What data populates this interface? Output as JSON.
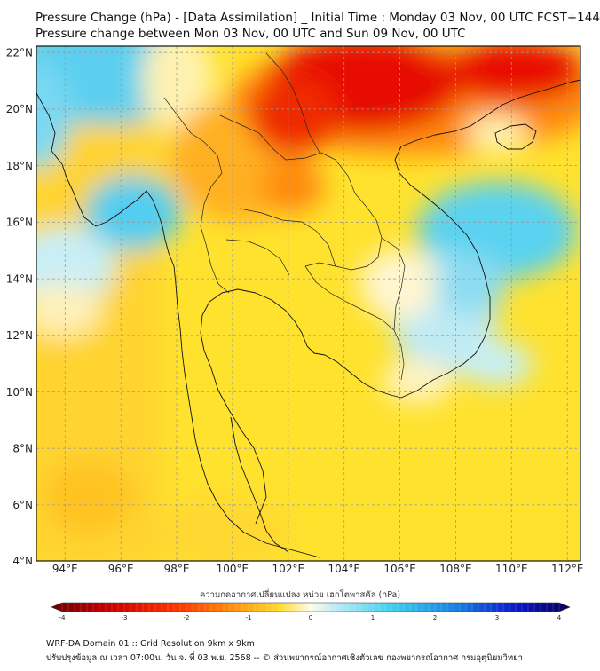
{
  "header": {
    "title_line1": "Pressure Change (hPa) - [Data Assimilation] _ Initial Time : Monday 03 Nov, 00 UTC FCST+144",
    "title_line2": "Pressure change between Mon 03 Nov, 00 UTC and Sun 09 Nov, 00 UTC"
  },
  "map": {
    "lat_ticks": [
      "22°N",
      "20°N",
      "18°N",
      "16°N",
      "14°N",
      "12°N",
      "10°N",
      "8°N",
      "6°N",
      "4°N"
    ],
    "lon_ticks": [
      "94°E",
      "96°E",
      "98°E",
      "100°E",
      "102°E",
      "104°E",
      "106°E",
      "108°E",
      "110°E",
      "112°E"
    ],
    "lat_range": [
      4,
      22.2
    ],
    "lon_range": [
      93,
      112.5
    ],
    "colors": {
      "deep_red": "#e00000",
      "orange": "#ff8a10",
      "yellow": "#ffe835",
      "pale": "#fff6d0",
      "cyan": "#5ad2f0"
    }
  },
  "colorbar": {
    "label": "ความกดอากาศเปลี่ยนแปลง หน่วย เฮกโตพาสคัล (hPa)",
    "ticks": [
      "-4",
      "-3",
      "-2",
      "-1",
      "0",
      "1",
      "2",
      "3",
      "4"
    ],
    "range": [
      -4,
      4
    ]
  },
  "footer": {
    "line1": "WRF-DA Domain 01 :: Grid Resolution 9km x 9km",
    "line2": "ปรับปรุงข้อมูล ณ เวลา 07:00น. วัน จ. ที่ 03 พ.ย. 2568 -- © ส่วนพยากรณ์อากาศเชิงตัวเลข กองพยากรณ์อากาศ กรมอุตุนิยมวิทยา"
  }
}
